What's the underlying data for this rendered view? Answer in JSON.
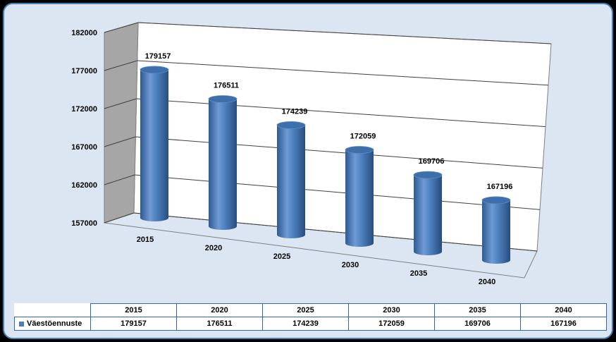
{
  "chart_data": {
    "type": "bar",
    "style": "3d-cylinder",
    "categories": [
      "2015",
      "2020",
      "2025",
      "2030",
      "2035",
      "2040"
    ],
    "series": [
      {
        "name": "Väestöennuste",
        "values": [
          179157,
          176511,
          174239,
          172059,
          169706,
          167196
        ]
      }
    ],
    "yticks": [
      "182000",
      "177000",
      "172000",
      "167000",
      "162000",
      "157000"
    ],
    "ylim": [
      157000,
      182000
    ],
    "grid": true,
    "data_table": true,
    "colors": {
      "bar": "#4a7ebb",
      "background": "#dce6f2",
      "border": "#4a7ebb"
    }
  }
}
